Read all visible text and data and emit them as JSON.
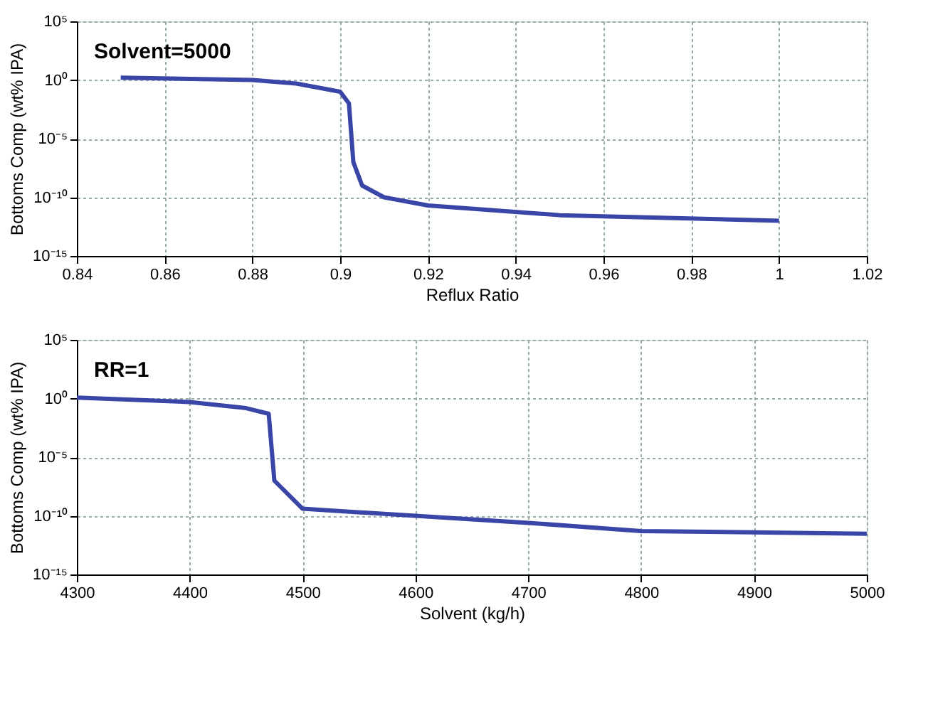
{
  "chart_data": [
    {
      "type": "line",
      "xlabel": "Reflux Ratio",
      "ylabel": "Bottoms Comp (wt% IPA)",
      "annotations": [
        "Solvent=5000"
      ],
      "x": [
        0.85,
        0.88,
        0.89,
        0.9,
        0.902,
        0.903,
        0.905,
        0.91,
        0.92,
        0.95,
        1.0
      ],
      "series": [
        {
          "color": "#3a45a8",
          "values": [
            1.6,
            1.0,
            0.5,
            0.1,
            0.01,
            1e-07,
            1e-09,
            1e-10,
            2e-11,
            3e-12,
            1e-12
          ]
        }
      ],
      "xlim": [
        0.84,
        1.02
      ],
      "xticks": [
        0.84,
        0.86,
        0.88,
        0.9,
        0.92,
        0.94,
        0.96,
        0.98,
        1,
        1.02
      ],
      "ylim": [
        1e-15,
        100000
      ],
      "log": true,
      "yticks": [
        {
          "value": 1e-15,
          "label": "10⁻¹⁵"
        },
        {
          "value": 1e-10,
          "label": "10⁻¹⁰"
        },
        {
          "value": 1e-05,
          "label": "10⁻⁵"
        },
        {
          "value": 1,
          "label": "10⁰"
        },
        {
          "value": 100000,
          "label": "10⁵"
        }
      ],
      "grid": true,
      "line_style": "solid",
      "marker": "none"
    },
    {
      "type": "line",
      "xlabel": "Solvent (kg/h)",
      "ylabel": "Bottoms Comp (wt% IPA)",
      "annotations": [
        "RR=1"
      ],
      "x": [
        4300,
        4400,
        4450,
        4470,
        4475,
        4500,
        4600,
        4700,
        4800,
        5000
      ],
      "series": [
        {
          "color": "#3a45a8",
          "values": [
            1.2,
            0.5,
            0.15,
            0.05,
            1e-07,
            4e-10,
            1e-10,
            2.5e-11,
            5e-12,
            3e-12
          ]
        }
      ],
      "xlim": [
        4300,
        5000
      ],
      "xticks": [
        4300,
        4400,
        4500,
        4600,
        4700,
        4800,
        4900,
        5000
      ],
      "ylim": [
        1e-15,
        100000
      ],
      "log": true,
      "yticks": [
        {
          "value": 1e-15,
          "label": "10⁻¹⁵"
        },
        {
          "value": 1e-10,
          "label": "10⁻¹⁰"
        },
        {
          "value": 1e-05,
          "label": "10⁻⁵"
        },
        {
          "value": 1,
          "label": "10⁰"
        },
        {
          "value": 100000,
          "label": "10⁵"
        }
      ],
      "grid": true,
      "line_style": "solid",
      "marker": "none"
    }
  ]
}
